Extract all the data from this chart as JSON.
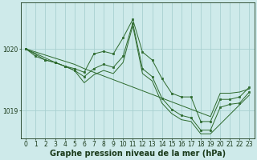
{
  "background_color": "#ceeaea",
  "grid_color": "#a8d0d0",
  "line_color": "#2d6a2d",
  "marker_color": "#2d6a2d",
  "xlabel": "Graphe pression niveau de la mer (hPa)",
  "xlabel_fontsize": 7,
  "tick_fontsize": 5.5,
  "xlim": [
    -0.5,
    23.5
  ],
  "ylim": [
    1018.55,
    1020.75
  ],
  "yticks": [
    1019,
    1020
  ],
  "xticks": [
    0,
    1,
    2,
    3,
    4,
    5,
    6,
    7,
    8,
    9,
    10,
    11,
    12,
    13,
    14,
    15,
    16,
    17,
    18,
    19,
    20,
    21,
    22,
    23
  ],
  "lines": [
    {
      "x": [
        0,
        1,
        2,
        3,
        4,
        5,
        6,
        7,
        8,
        9,
        10,
        11,
        12,
        13,
        14,
        15,
        16,
        17,
        18,
        19,
        20,
        21,
        22,
        23
      ],
      "y": [
        1020.0,
        1019.88,
        1019.82,
        1019.78,
        1019.72,
        1019.68,
        1019.62,
        1019.92,
        1019.96,
        1019.92,
        1020.18,
        1020.48,
        1019.95,
        1019.82,
        1019.52,
        1019.28,
        1019.22,
        1019.22,
        1018.82,
        1018.82,
        1019.18,
        1019.18,
        1019.22,
        1019.38
      ],
      "has_markers": true
    },
    {
      "x": [
        0,
        1,
        2,
        3,
        4,
        5,
        6,
        7,
        8,
        9,
        10,
        11,
        12,
        13,
        14,
        15,
        16,
        17,
        18,
        19,
        20,
        21,
        22,
        23
      ],
      "y": [
        1020.0,
        1019.95,
        1019.9,
        1019.85,
        1019.8,
        1019.75,
        1019.68,
        1019.62,
        1019.56,
        1019.5,
        1019.44,
        1019.38,
        1019.32,
        1019.26,
        1019.2,
        1019.14,
        1019.08,
        1019.02,
        1018.96,
        1018.9,
        1019.28,
        1019.28,
        1019.3,
        1019.35
      ],
      "has_markers": false
    },
    {
      "x": [
        0,
        2,
        3,
        4,
        5,
        6,
        7,
        8,
        9,
        10,
        11,
        12,
        13,
        14,
        15,
        16,
        17,
        18,
        19,
        20,
        21,
        22,
        23
      ],
      "y": [
        1020.0,
        1019.82,
        1019.78,
        1019.72,
        1019.65,
        1019.55,
        1019.68,
        1019.75,
        1019.7,
        1019.88,
        1020.42,
        1019.68,
        1019.55,
        1019.2,
        1019.02,
        1018.92,
        1018.88,
        1018.68,
        1018.68,
        1019.05,
        1019.1,
        1019.12,
        1019.3
      ],
      "has_markers": true
    },
    {
      "x": [
        0,
        3,
        4,
        5,
        6,
        7,
        8,
        9,
        10,
        11,
        12,
        13,
        14,
        15,
        16,
        17,
        18,
        19,
        23
      ],
      "y": [
        1020.0,
        1019.78,
        1019.72,
        1019.65,
        1019.45,
        1019.58,
        1019.65,
        1019.6,
        1019.78,
        1020.38,
        1019.6,
        1019.48,
        1019.12,
        1018.95,
        1018.85,
        1018.82,
        1018.62,
        1018.62,
        1019.25
      ],
      "has_markers": false
    }
  ]
}
